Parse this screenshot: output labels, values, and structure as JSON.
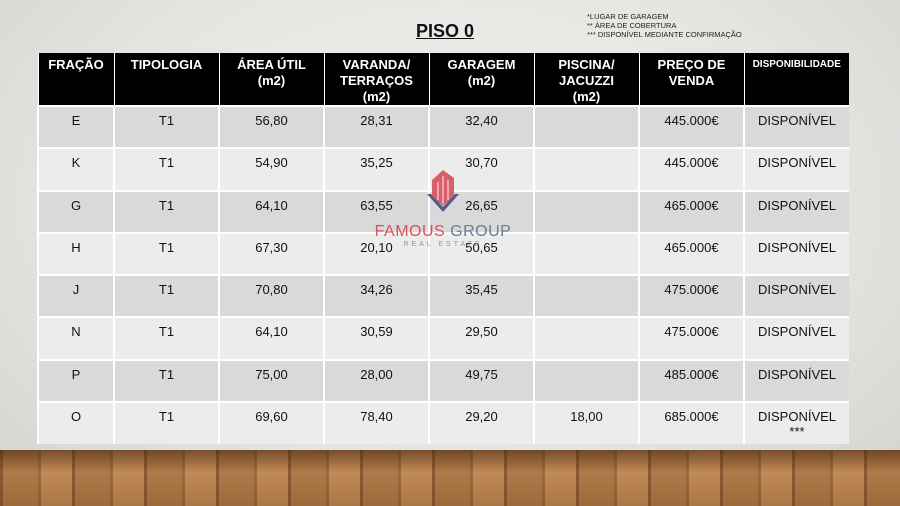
{
  "title": "PISO 0",
  "notes": [
    "*LUGAR DE GARAGEM",
    "** ÁREA DE COBERTURA",
    "*** DISPONÍVEL MEDIANTE CONFIRMAÇÃO"
  ],
  "headers": [
    "FRAÇÃO",
    "TIPOLOGIA",
    "ÁREA ÚTIL (m2)",
    "VARANDA/ TERRAÇOS (m2)",
    "GARAGEM (m2)",
    "PISCINA/ JACUZZI (m2)",
    "PREÇO DE VENDA",
    "DISPONIBILIDADE"
  ],
  "rows": [
    [
      "E",
      "T1",
      "56,80",
      "28,31",
      "32,40",
      "",
      "445.000€",
      "DISPONÍVEL"
    ],
    [
      "K",
      "T1",
      "54,90",
      "35,25",
      "30,70",
      "",
      "445.000€",
      "DISPONÍVEL"
    ],
    [
      "G",
      "T1",
      "64,10",
      "63,55",
      "26,65",
      "",
      "465.000€",
      "DISPONÍVEL"
    ],
    [
      "H",
      "T1",
      "67,30",
      "20,10",
      "50,65",
      "",
      "465.000€",
      "DISPONÍVEL"
    ],
    [
      "J",
      "T1",
      "70,80",
      "34,26",
      "35,45",
      "",
      "475.000€",
      "DISPONÍVEL"
    ],
    [
      "N",
      "T1",
      "64,10",
      "30,59",
      "29,50",
      "",
      "475.000€",
      "DISPONÍVEL"
    ],
    [
      "P",
      "T1",
      "75,00",
      "28,00",
      "49,75",
      "",
      "485.000€",
      "DISPONÍVEL"
    ],
    [
      "O",
      "T1",
      "69,60",
      "78,40",
      "29,20",
      "18,00",
      "685.000€",
      "DISPONÍVEL ***"
    ]
  ],
  "watermark": {
    "name_part1": "FAMOUS",
    "name_part2": "GROUP",
    "sub": "REAL ESTATE",
    "colors": {
      "red": "#d9505c",
      "blue": "#6b7a95"
    }
  }
}
